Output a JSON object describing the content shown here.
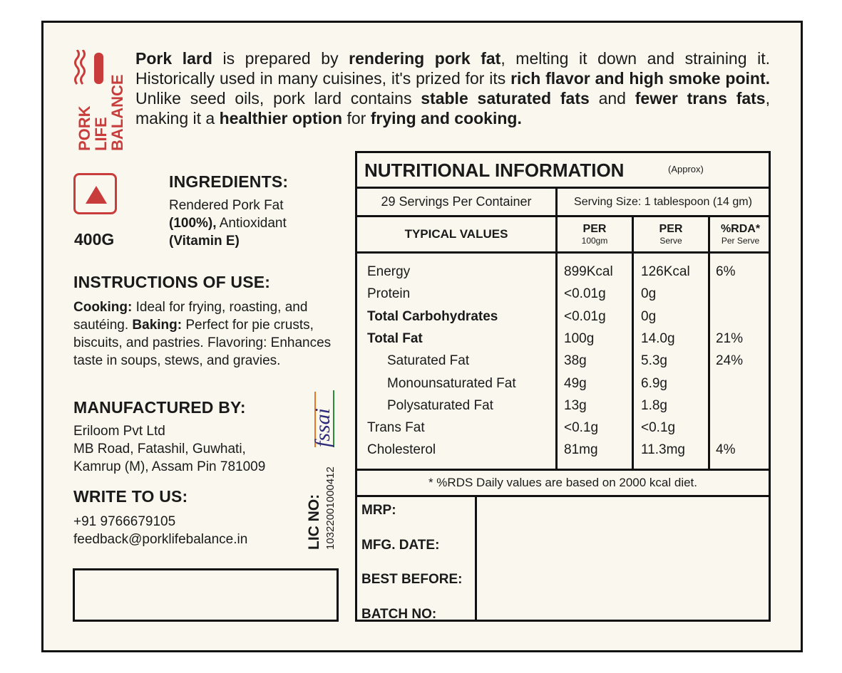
{
  "brand": {
    "logo_text": [
      "PORK",
      "LIFE",
      "BALANCE"
    ],
    "color": "#c93c3c"
  },
  "intro": [
    {
      "t": "Pork lard",
      "b": true
    },
    {
      "t": " is prepared by ",
      "b": false
    },
    {
      "t": "rendering pork fat",
      "b": true
    },
    {
      "t": ", melting it down and straining it. Historically used in many cuisines, it's prized for its ",
      "b": false
    },
    {
      "t": "rich flavor and high smoke point.",
      "b": true
    },
    {
      "t": " Unlike seed oils, pork lard contains ",
      "b": false
    },
    {
      "t": "stable saturated fats",
      "b": true
    },
    {
      "t": " and ",
      "b": false
    },
    {
      "t": "fewer trans fats",
      "b": true
    },
    {
      "t": ", making it a ",
      "b": false
    },
    {
      "t": "healthier option",
      "b": true
    },
    {
      "t": " for ",
      "b": false
    },
    {
      "t": "frying and cooking.",
      "b": true
    }
  ],
  "symbol_icon": "non-veg-triangle-icon",
  "weight": "400G",
  "ingredients": {
    "title": "INGREDIENTS:",
    "line1": "Rendered Pork Fat",
    "bold1": "(100%),",
    "line2": " Antioxidant",
    "bold2": "(Vitamin E)"
  },
  "instructions": {
    "title": "INSTRUCTIONS OF USE:",
    "cooking_label": "Cooking:",
    "cooking": " Ideal for frying, roasting, and sautéing. ",
    "baking_label": "Baking:",
    "baking": " Perfect for pie crusts, biscuits, and pastries. Flavoring: Enhances taste in soups, stews, and gravies."
  },
  "manufacturer": {
    "title": "MANUFACTURED BY:",
    "lines": [
      "Eriloom Pvt Ltd",
      "MB Road, Fatashil, Guwhati,",
      "Kamrup (M), Assam Pin 781009"
    ]
  },
  "contact": {
    "title": "WRITE TO US:",
    "phone": "+91 9766679105",
    "email": "feedback@porklifebalance.in"
  },
  "fssai": {
    "logo": "fssai",
    "lic_label": "LIC NO:",
    "lic_no": "10322001000412"
  },
  "nutrition": {
    "title": "NUTRITIONAL INFORMATION",
    "approx": "(Approx)",
    "servings": "29 Servings Per Container",
    "serving_size": "Serving Size: 1 tablespoon (14 gm)",
    "headers": [
      {
        "main": "TYPICAL VALUES",
        "sub": ""
      },
      {
        "main": "PER",
        "sub": "100gm"
      },
      {
        "main": "PER",
        "sub": "Serve"
      },
      {
        "main": "%RDA*",
        "sub": "Per Serve"
      }
    ],
    "rows": [
      {
        "name": "Energy",
        "bold": false,
        "indent": false,
        "per100": "899Kcal",
        "serve": "126Kcal",
        "rda": "6%"
      },
      {
        "name": "Protein",
        "bold": false,
        "indent": false,
        "per100": "<0.01g",
        "serve": "0g",
        "rda": ""
      },
      {
        "name": "Total Carbohydrates",
        "bold": true,
        "indent": false,
        "per100": "<0.01g",
        "serve": "0g",
        "rda": ""
      },
      {
        "name": "Total Fat",
        "bold": true,
        "indent": false,
        "per100": "100g",
        "serve": "14.0g",
        "rda": "21%"
      },
      {
        "name": "Saturated Fat",
        "bold": false,
        "indent": true,
        "per100": "38g",
        "serve": "5.3g",
        "rda": "24%"
      },
      {
        "name": "Monounsaturated Fat",
        "bold": false,
        "indent": true,
        "per100": "49g",
        "serve": "6.9g",
        "rda": ""
      },
      {
        "name": "Polysaturated Fat",
        "bold": false,
        "indent": true,
        "per100": "13g",
        "serve": "1.8g",
        "rda": ""
      },
      {
        "name": "Trans Fat",
        "bold": false,
        "indent": false,
        "per100": "<0.1g",
        "serve": "<0.1g",
        "rda": ""
      },
      {
        "name": "Cholesterol",
        "bold": false,
        "indent": false,
        "per100": "81mg",
        "serve": "11.3mg",
        "rda": "4%"
      }
    ],
    "footnote": "* %RDS Daily values are based on 2000 kcal diet."
  },
  "batch": {
    "labels": [
      "MRP:",
      "MFG. DATE:",
      "BEST BEFORE:",
      "BATCH NO:"
    ]
  }
}
